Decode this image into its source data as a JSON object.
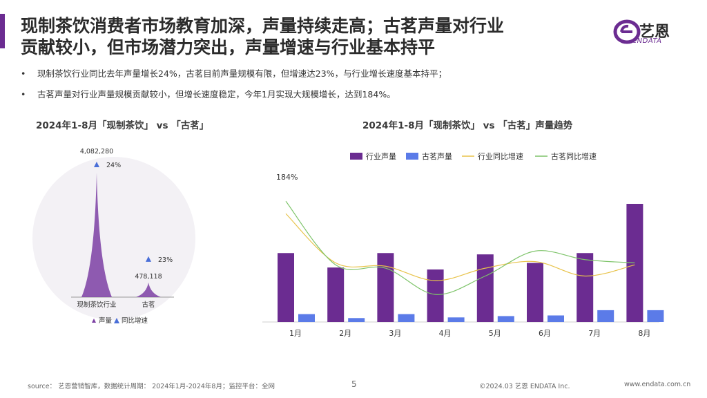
{
  "header": {
    "title_line1": "现制茶饮消费者市场教育加深，声量持续走高；古茗声量对行业",
    "title_line2": "贡献较小，但市场潜力突出，声量增速与行业基本持平"
  },
  "logo": {
    "text": "艺恩",
    "sub": "eNDATA"
  },
  "bullets": [
    "现制茶饮行业同比去年声量增长24%，古茗目前声量规模有限，但增速达23%，与行业增长速度基本持平；",
    "古茗声量对行业声量规模贡献较小，但增长速度稳定，今年1月实现大规模增长，达到184%。"
  ],
  "bullet_marker": "•",
  "left_title": "2024年1-8月「现制茶饮」 vs 「古茗」",
  "right_title": "2024年1-8月「现制茶饮」 vs 「古茗」声量趋势",
  "footer": {
    "source": "source： 艺恩营销智库，数据统计周期： 2024年1月-2024年8月；监控平台：全网",
    "page": "5",
    "copyright": "©2024.03  艺恩 ENDATA Inc.",
    "url": "www.endata.com.cn"
  },
  "chart_data": [
    {
      "type": "bar",
      "categories": [
        "现制茶饮行业",
        "古茗"
      ],
      "values": [
        4082280,
        478118
      ],
      "value_labels": [
        "4,082,280",
        "478,118"
      ],
      "growth_labels": [
        "24%",
        "23%"
      ],
      "legend": [
        "声量",
        "同比增速"
      ],
      "colors": {
        "volume": "#7b3fa3",
        "growth": "#4a6fd8",
        "bg": "#f3f1f5"
      }
    },
    {
      "type": "bar",
      "categories": [
        "1月",
        "2月",
        "3月",
        "4月",
        "5月",
        "6月",
        "7月",
        "8月"
      ],
      "series": [
        {
          "name": "行业声量",
          "kind": "bar",
          "color": "#6b2c91",
          "values": [
            105,
            83,
            105,
            80,
            103,
            90,
            105,
            180
          ]
        },
        {
          "name": "古茗声量",
          "kind": "bar",
          "color": "#5b7be8",
          "values": [
            12,
            6,
            12,
            7,
            9,
            10,
            18,
            18
          ]
        },
        {
          "name": "行业同比增速",
          "kind": "line",
          "color": "#e8c34a",
          "values": [
            165,
            90,
            85,
            63,
            82,
            92,
            70,
            87
          ]
        },
        {
          "name": "古茗同比增速",
          "kind": "line",
          "color": "#7ec46a",
          "values": [
            184,
            87,
            82,
            42,
            70,
            108,
            95,
            90
          ]
        }
      ],
      "annotation": "184%",
      "ylim_bar": [
        0,
        200
      ],
      "ylim_line": [
        0,
        200
      ],
      "legend_position": "top"
    }
  ]
}
